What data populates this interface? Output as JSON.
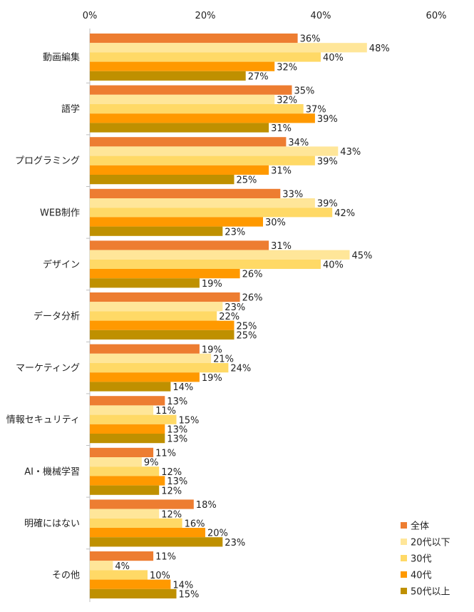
{
  "chart_data": {
    "type": "bar",
    "orientation": "horizontal",
    "categories": [
      "動画編集",
      "語学",
      "プログラミング",
      "WEB制作",
      "デザイン",
      "データ分析",
      "マーケティング",
      "情報セキュリティ",
      "AI・機械学習",
      "明確にはない",
      "その他"
    ],
    "series": [
      {
        "name": "全体",
        "color": "#ED7D31",
        "values": [
          36,
          35,
          34,
          33,
          31,
          26,
          19,
          13,
          11,
          18,
          11
        ]
      },
      {
        "name": "20代以下",
        "color": "#FFE699",
        "values": [
          48,
          32,
          43,
          39,
          45,
          23,
          21,
          11,
          9,
          12,
          4
        ]
      },
      {
        "name": "30代",
        "color": "#FFD966",
        "values": [
          40,
          37,
          39,
          42,
          40,
          22,
          24,
          15,
          12,
          16,
          10
        ]
      },
      {
        "name": "40代",
        "color": "#FF9900",
        "values": [
          32,
          39,
          31,
          30,
          26,
          25,
          19,
          13,
          13,
          20,
          14
        ]
      },
      {
        "name": "50代以上",
        "color": "#BF9000",
        "values": [
          27,
          31,
          25,
          23,
          19,
          25,
          14,
          13,
          12,
          23,
          15
        ]
      }
    ],
    "value_suffix": "%",
    "xlim": [
      0,
      60
    ],
    "x_ticks": [
      "0%",
      "20%",
      "40%",
      "60%"
    ],
    "x_tick_values": [
      0,
      20,
      40,
      60
    ],
    "x_axis_position": "top",
    "grid": false,
    "legend_position": "bottom-right"
  }
}
